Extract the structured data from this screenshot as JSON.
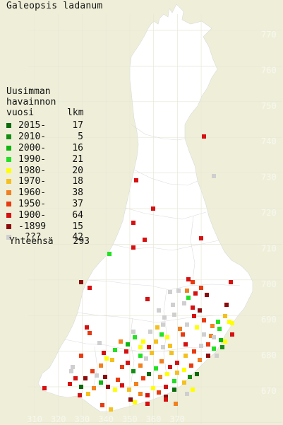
{
  "title": "Galeopsis ladanum",
  "legend": {
    "heading_lines": [
      "Uusimman",
      "havainnon",
      "vuosi      lkm"
    ],
    "rows": [
      {
        "label": "2015-",
        "count": "17",
        "color": "#0b6b0b"
      },
      {
        "label": "2010-",
        "count": "5",
        "color": "#138e13"
      },
      {
        "label": "2000-",
        "count": "16",
        "color": "#10b510"
      },
      {
        "label": "1990-",
        "count": "21",
        "color": "#22e022"
      },
      {
        "label": "1980-",
        "count": "20",
        "color": "#ffff00"
      },
      {
        "label": "1970-",
        "count": "18",
        "color": "#f4c020"
      },
      {
        "label": "1960-",
        "count": "38",
        "color": "#f08020"
      },
      {
        "label": "1950-",
        "count": "37",
        "color": "#e83a10"
      },
      {
        "label": "1900-",
        "count": "64",
        "color": "#d61010"
      },
      {
        "label": "-1899",
        "count": "15",
        "color": "#8c0c0c"
      },
      {
        "label": "???",
        "count": "42",
        "color": "#cfcfcf"
      }
    ],
    "total_label": "Yhteensä",
    "total_count": "293"
  },
  "grid": {
    "x_labels": [
      "310",
      "320",
      "330",
      "340",
      "350",
      "360",
      "370"
    ],
    "y_labels": [
      "770",
      "760",
      "750",
      "740",
      "730",
      "720",
      "710",
      "700",
      "690",
      "680",
      "670"
    ]
  },
  "colors": {
    "background": "#efefd9",
    "land": "#ffffff",
    "grid_label": "#f7f7f0"
  }
}
